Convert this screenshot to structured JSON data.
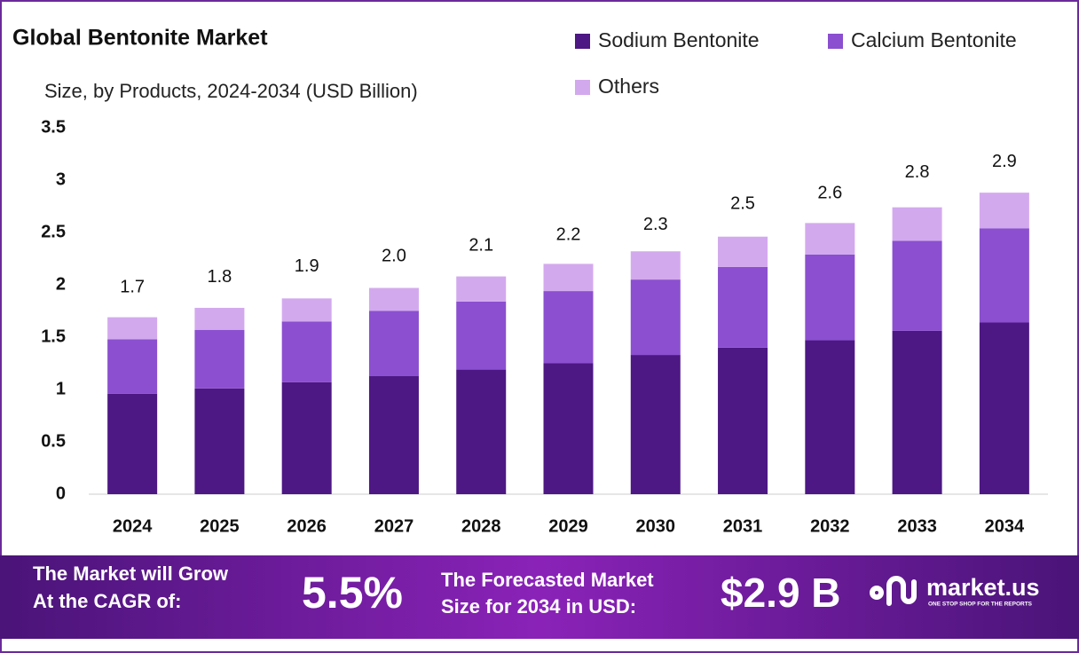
{
  "chart_data": {
    "type": "stacked_bar",
    "title": "Global Bentonite Market",
    "subtitle": "Size, by Products, 2024-2034 (USD Billion)",
    "categories": [
      "2024",
      "2025",
      "2026",
      "2027",
      "2028",
      "2029",
      "2030",
      "2031",
      "2032",
      "2033",
      "2034"
    ],
    "series": [
      {
        "name": "Sodium Bentonite",
        "color": "#4d1784",
        "values": [
          0.96,
          1.01,
          1.07,
          1.13,
          1.19,
          1.25,
          1.33,
          1.4,
          1.47,
          1.56,
          1.64
        ]
      },
      {
        "name": "Calcium Bentonite",
        "color": "#8b4fd0",
        "values": [
          0.52,
          0.56,
          0.58,
          0.62,
          0.65,
          0.69,
          0.72,
          0.77,
          0.82,
          0.86,
          0.9
        ]
      },
      {
        "name": "Others",
        "color": "#d3a9ee",
        "values": [
          0.21,
          0.21,
          0.22,
          0.22,
          0.24,
          0.26,
          0.27,
          0.29,
          0.3,
          0.32,
          0.34
        ]
      }
    ],
    "totals": {
      "values": [
        1.7,
        1.8,
        1.9,
        2.0,
        2.1,
        2.2,
        2.3,
        2.5,
        2.6,
        2.8,
        2.9
      ],
      "value_labels": [
        "1.7",
        "1.8",
        "1.9",
        "2.0",
        "2.1",
        "2.2",
        "2.3",
        "2.5",
        "2.6",
        "2.8",
        "2.9"
      ]
    },
    "ylim": [
      0,
      3.5
    ],
    "yticks": [
      0,
      0.5,
      1,
      1.5,
      2,
      2.5,
      3,
      3.5
    ],
    "grid": false,
    "legend": "top-right"
  },
  "footer": {
    "cagr_text": [
      "The Market will Grow",
      "At the CAGR of:"
    ],
    "cagr": "5.5%",
    "forecast_text": [
      "The Forecasted Market",
      "Size for 2034 in USD:"
    ],
    "forecast": "$2.9 B",
    "brand": "market.us",
    "tagline": "ONE STOP SHOP FOR THE REPORTS"
  }
}
